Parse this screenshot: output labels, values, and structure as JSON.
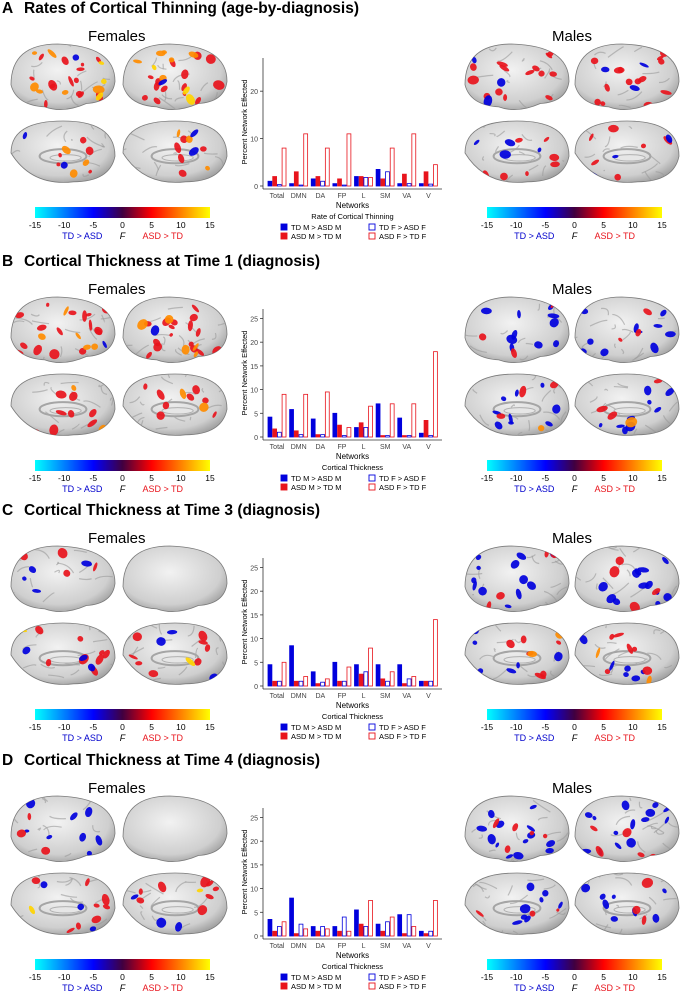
{
  "labels": {
    "females": "Females",
    "males": "Males",
    "xlabel": "Networks",
    "ylabel": "Percent Network Effected"
  },
  "colorbar": {
    "ticks": [
      "-15",
      "-10",
      "-5",
      "0",
      "5",
      "10",
      "15"
    ],
    "td_label": "TD > ASD",
    "f_label": "F",
    "asd_label": "ASD > TD",
    "colors": [
      "#00ffff",
      "#0080ff",
      "#0000ff",
      "#400040",
      "#ff0000",
      "#ff8000",
      "#ffff00"
    ]
  },
  "legend_items": {
    "tdm": "TD M > ASD M",
    "asdm": "ASD M > TD M",
    "tdf": "TD F > ASD F",
    "asdf": "ASD F > TD F"
  },
  "colors": {
    "td": "#0000dd",
    "asd": "#e8141c",
    "brain": "#d9d9d9"
  },
  "chart_data": [
    {
      "type": "bar",
      "panel": "A",
      "title": "Rates of Cortical Thinning (age-by-diagnosis)",
      "legend_title": "Rate of Cortical Thinning",
      "categories": [
        "Total",
        "DMN",
        "DA",
        "FP",
        "L",
        "SM",
        "VA",
        "V"
      ],
      "xlabel": "Networks",
      "ylabel": "Percent Network Effected",
      "ylim": [
        0,
        27
      ],
      "yticks": [
        "0",
        "10",
        "20"
      ],
      "series": [
        {
          "name": "TD M > ASD M",
          "style": "filled-blue",
          "values": [
            1.0,
            0.5,
            1.5,
            0.5,
            2.0,
            3.5,
            0.5,
            0.5
          ]
        },
        {
          "name": "ASD M > TD M",
          "style": "filled-red",
          "values": [
            2.0,
            3.0,
            2.0,
            1.5,
            2.0,
            1.5,
            2.5,
            3.0
          ]
        },
        {
          "name": "TD F > ASD F",
          "style": "open-blue",
          "values": [
            0.3,
            0.2,
            1.0,
            0.2,
            1.8,
            3.0,
            0.5,
            0.4
          ]
        },
        {
          "name": "ASD F > TD F",
          "style": "open-red",
          "values": [
            8.0,
            11.0,
            8.0,
            11.0,
            1.8,
            8.0,
            11.0,
            4.5
          ]
        }
      ]
    },
    {
      "type": "bar",
      "panel": "B",
      "title": "Cortical Thickness at Time 1 (diagnosis)",
      "legend_title": "Cortical Thickness",
      "categories": [
        "Total",
        "DMN",
        "DA",
        "FP",
        "L",
        "SM",
        "VA",
        "V"
      ],
      "xlabel": "Networks",
      "ylabel": "Percent Network Effected",
      "ylim": [
        0,
        27
      ],
      "yticks": [
        "0",
        "5",
        "10",
        "15",
        "20",
        "25"
      ],
      "series": [
        {
          "name": "TD M > ASD M",
          "style": "filled-blue",
          "values": [
            4.2,
            5.8,
            3.8,
            5.0,
            2.0,
            7.0,
            4.0,
            0.8
          ]
        },
        {
          "name": "ASD M > TD M",
          "style": "filled-red",
          "values": [
            1.7,
            1.3,
            0.5,
            2.5,
            3.0,
            0.3,
            0.3,
            3.5
          ]
        },
        {
          "name": "TD F > ASD F",
          "style": "open-blue",
          "values": [
            1.0,
            0.5,
            0.5,
            0.3,
            2.0,
            0.3,
            0.3,
            0.3
          ]
        },
        {
          "name": "ASD F > TD F",
          "style": "open-red",
          "values": [
            9.0,
            9.0,
            9.5,
            2.0,
            6.5,
            7.0,
            7.0,
            18.0
          ]
        }
      ]
    },
    {
      "type": "bar",
      "panel": "C",
      "title": "Cortical Thickness at Time 3 (diagnosis)",
      "legend_title": "Cortical Thickness",
      "categories": [
        "Total",
        "DMN",
        "DA",
        "FP",
        "L",
        "SM",
        "VA",
        "V"
      ],
      "xlabel": "Networks",
      "ylabel": "Percent Network Effected",
      "ylim": [
        0,
        27
      ],
      "yticks": [
        "0",
        "5",
        "10",
        "15",
        "20",
        "25"
      ],
      "series": [
        {
          "name": "TD M > ASD M",
          "style": "filled-blue",
          "values": [
            4.5,
            8.5,
            3.0,
            5.0,
            4.5,
            4.5,
            4.5,
            1.0
          ]
        },
        {
          "name": "ASD M > TD M",
          "style": "filled-red",
          "values": [
            1.0,
            1.0,
            0.5,
            1.0,
            2.5,
            1.5,
            0.5,
            1.0
          ]
        },
        {
          "name": "TD F > ASD F",
          "style": "open-blue",
          "values": [
            1.0,
            1.0,
            0.8,
            1.0,
            3.0,
            1.0,
            1.5,
            1.0
          ]
        },
        {
          "name": "ASD F > TD F",
          "style": "open-red",
          "values": [
            5.0,
            2.0,
            1.5,
            4.0,
            8.0,
            3.0,
            2.0,
            14.0
          ]
        }
      ]
    },
    {
      "type": "bar",
      "panel": "D",
      "title": "Cortical Thickness at Time 4 (diagnosis)",
      "legend_title": "Cortical Thickness",
      "categories": [
        "Total",
        "DMN",
        "DA",
        "FP",
        "L",
        "SM",
        "VA",
        "V"
      ],
      "xlabel": "Networks",
      "ylabel": "Percent Network Effected",
      "ylim": [
        0,
        27
      ],
      "yticks": [
        "0",
        "5",
        "10",
        "15",
        "20",
        "25"
      ],
      "series": [
        {
          "name": "TD M > ASD M",
          "style": "filled-blue",
          "values": [
            3.5,
            8.0,
            2.0,
            2.0,
            5.5,
            2.5,
            4.5,
            1.0
          ]
        },
        {
          "name": "ASD M > TD M",
          "style": "filled-red",
          "values": [
            1.0,
            0.5,
            1.0,
            1.0,
            2.5,
            1.0,
            0.5,
            0.5
          ]
        },
        {
          "name": "TD F > ASD F",
          "style": "open-blue",
          "values": [
            2.0,
            2.5,
            2.0,
            4.0,
            2.0,
            3.0,
            4.5,
            1.0
          ]
        },
        {
          "name": "ASD F > TD F",
          "style": "open-red",
          "values": [
            3.0,
            1.5,
            1.5,
            1.0,
            7.5,
            4.0,
            2.0,
            7.5
          ]
        }
      ]
    }
  ]
}
